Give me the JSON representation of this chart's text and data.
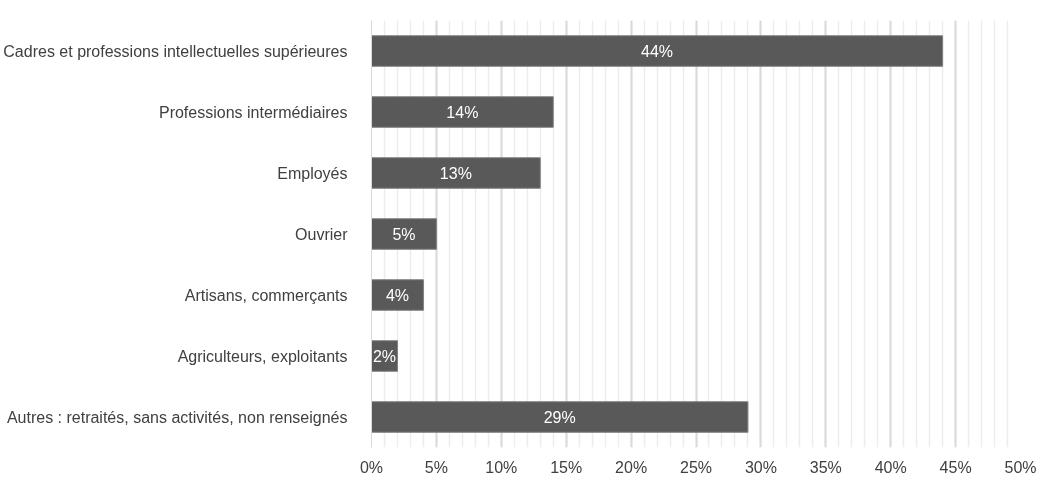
{
  "chart_data": {
    "type": "bar",
    "orientation": "horizontal",
    "categories": [
      "Cadres et professions intellectuelles supérieures",
      "Professions intermédiaires",
      "Employés",
      "Ouvrier",
      "Artisans, commerçants",
      "Agriculteurs, exploitants",
      "Autres : retraités, sans activités, non renseignés"
    ],
    "values": [
      44,
      14,
      13,
      5,
      4,
      2,
      29
    ],
    "color": "#595959",
    "value_labels": [
      "44%",
      "14%",
      "13%",
      "5%",
      "4%",
      "2%",
      "29%"
    ],
    "xlim": [
      0,
      50
    ],
    "xticks": [
      {
        "value": 0,
        "label": "0%"
      },
      {
        "value": 5,
        "label": "5%"
      },
      {
        "value": 10,
        "label": "10%"
      },
      {
        "value": 15,
        "label": "15%"
      },
      {
        "value": 20,
        "label": "20%"
      },
      {
        "value": 25,
        "label": "25%"
      },
      {
        "value": 30,
        "label": "30%"
      },
      {
        "value": 35,
        "label": "35%"
      },
      {
        "value": 40,
        "label": "40%"
      },
      {
        "value": 45,
        "label": "45%"
      },
      {
        "value": 50,
        "label": "50%"
      }
    ],
    "grid": "x"
  }
}
